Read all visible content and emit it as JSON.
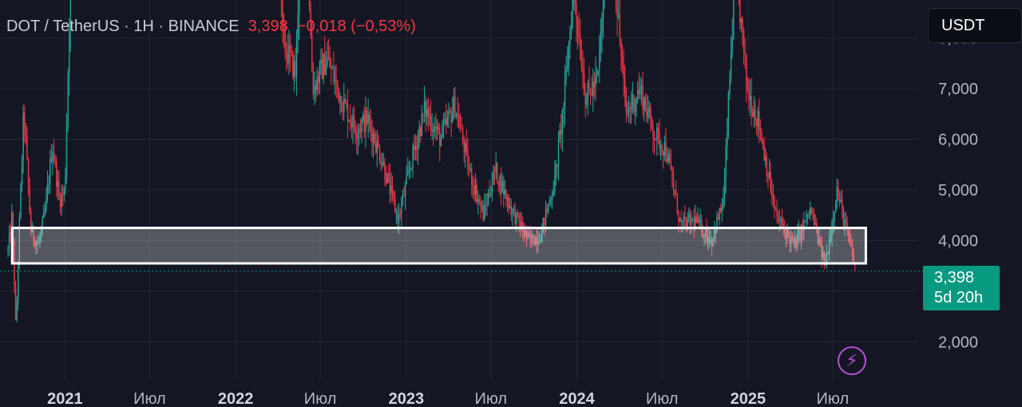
{
  "legend": {
    "symbol": "DOT / TetherUS · 1H · BINANCE",
    "price": "3,398",
    "change": "−0,018 (−0,53%)"
  },
  "currency_button": "USDT",
  "price_tag": {
    "price": "3,398",
    "countdown": "5d 20h"
  },
  "colors": {
    "up": "#26a69a",
    "down": "#f23645",
    "background": "#141723",
    "grid": "#232733",
    "axis_text": "#b2b5be",
    "year_text": "#d1d4dc"
  },
  "icons": {
    "alert": "lightning-bolt-icon"
  },
  "chart_data": {
    "type": "candlestick",
    "y_ticks": [
      "2,000",
      "3,000",
      "4,000",
      "5,000",
      "6,000",
      "7,000",
      "8,000"
    ],
    "y_tick_values": [
      2,
      3,
      4,
      5,
      6,
      7,
      8
    ],
    "x_labels": [
      {
        "label": "2021",
        "date": "2021-01-01",
        "year": true
      },
      {
        "label": "Июл",
        "date": "2021-07-01",
        "year": false
      },
      {
        "label": "2022",
        "date": "2022-01-01",
        "year": true
      },
      {
        "label": "Июл",
        "date": "2022-07-01",
        "year": false
      },
      {
        "label": "2023",
        "date": "2023-01-01",
        "year": true
      },
      {
        "label": "Июл",
        "date": "2023-07-01",
        "year": false
      },
      {
        "label": "2024",
        "date": "2024-01-01",
        "year": true
      },
      {
        "label": "Июл",
        "date": "2024-07-01",
        "year": false
      },
      {
        "label": "2025",
        "date": "2025-01-01",
        "year": true
      },
      {
        "label": "Июл",
        "date": "2025-07-01",
        "year": false
      }
    ],
    "x_range": [
      "2020-08-15",
      "2025-12-31"
    ],
    "y_range": [
      1.25,
      8.75
    ],
    "last_price": 3.398,
    "zone": {
      "from": 3.55,
      "to": 4.25,
      "start": "2020-09-10",
      "end": "2025-09-10"
    },
    "path": [
      [
        "2020-09-01",
        3.8
      ],
      [
        "2020-09-10",
        4.5
      ],
      [
        "2020-09-18",
        2.2
      ],
      [
        "2020-09-25",
        4.2
      ],
      [
        "2020-10-05",
        6.6
      ],
      [
        "2020-10-20",
        4.2
      ],
      [
        "2020-11-05",
        3.9
      ],
      [
        "2020-11-20",
        4.6
      ],
      [
        "2020-12-05",
        5.9
      ],
      [
        "2020-12-20",
        4.8
      ],
      [
        "2021-01-01",
        5.0
      ],
      [
        "2021-01-20",
        12.0
      ],
      [
        "2022-03-20",
        16.0
      ],
      [
        "2022-04-10",
        8.0
      ],
      [
        "2022-05-10",
        7.3
      ],
      [
        "2022-05-25",
        12.0
      ],
      [
        "2022-06-15",
        7.0
      ],
      [
        "2022-07-15",
        7.6
      ],
      [
        "2022-08-15",
        6.8
      ],
      [
        "2022-09-15",
        6.2
      ],
      [
        "2022-10-10",
        6.4
      ],
      [
        "2022-11-10",
        5.6
      ],
      [
        "2022-12-15",
        4.4
      ],
      [
        "2023-01-10",
        5.5
      ],
      [
        "2023-02-10",
        6.6
      ],
      [
        "2023-03-15",
        6.0
      ],
      [
        "2023-04-15",
        6.7
      ],
      [
        "2023-05-15",
        5.4
      ],
      [
        "2023-06-15",
        4.5
      ],
      [
        "2023-07-10",
        5.4
      ],
      [
        "2023-08-15",
        4.6
      ],
      [
        "2023-09-20",
        4.0
      ],
      [
        "2023-10-15",
        4.1
      ],
      [
        "2023-11-15",
        5.2
      ],
      [
        "2023-12-05",
        6.8
      ],
      [
        "2023-12-25",
        9.0
      ],
      [
        "2024-01-20",
        6.8
      ],
      [
        "2024-02-15",
        7.2
      ],
      [
        "2024-03-10",
        10.5
      ],
      [
        "2024-04-15",
        6.5
      ],
      [
        "2024-05-15",
        7.0
      ],
      [
        "2024-06-15",
        6.1
      ],
      [
        "2024-07-10",
        5.8
      ],
      [
        "2024-08-10",
        4.3
      ],
      [
        "2024-09-10",
        4.4
      ],
      [
        "2024-10-15",
        4.0
      ],
      [
        "2024-11-10",
        4.8
      ],
      [
        "2024-12-05",
        9.5
      ],
      [
        "2024-12-30",
        7.0
      ],
      [
        "2025-01-25",
        6.3
      ],
      [
        "2025-03-01",
        4.5
      ],
      [
        "2025-04-10",
        3.9
      ],
      [
        "2025-05-15",
        4.6
      ],
      [
        "2025-06-15",
        3.5
      ],
      [
        "2025-07-10",
        5.0
      ],
      [
        "2025-08-05",
        4.0
      ],
      [
        "2025-08-20",
        3.4
      ]
    ]
  }
}
